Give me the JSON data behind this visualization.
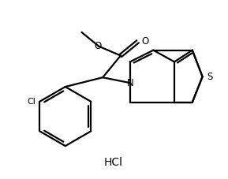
{
  "background_color": "#ffffff",
  "line_color": "#000000",
  "line_width": 1.6,
  "text_color": "#000000",
  "hcl_label": "HCl",
  "cl_label": "Cl",
  "n_label": "N",
  "s_label": "S",
  "figsize": [
    2.89,
    2.27
  ],
  "dpi": 100
}
